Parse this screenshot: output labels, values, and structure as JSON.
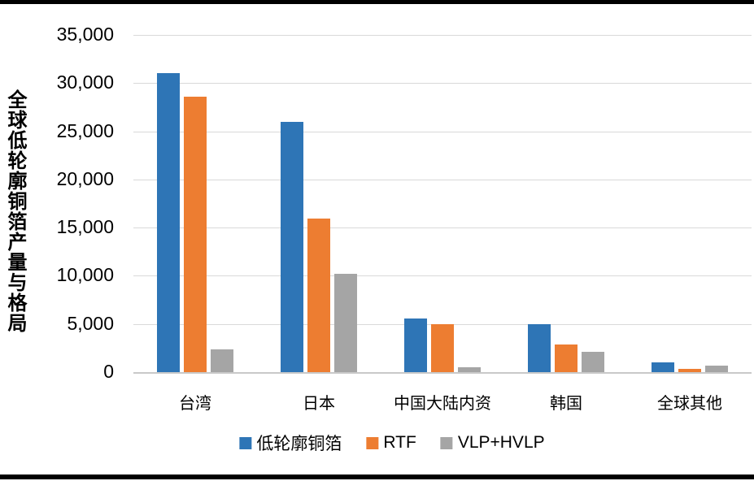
{
  "chart_data": {
    "type": "bar",
    "title": "",
    "ylabel": "全球低轮廓铜箔产量与格局",
    "categories": [
      "台湾",
      "日本",
      "中国大陆内资",
      "韩国",
      "全球其他"
    ],
    "series": [
      {
        "name": "低轮廓铜箔",
        "color": "#2E75B6",
        "values": [
          31000,
          26000,
          5600,
          5000,
          1000
        ]
      },
      {
        "name": "RTF",
        "color": "#ED7D31",
        "values": [
          28600,
          15900,
          5000,
          2900,
          300
        ]
      },
      {
        "name": "VLP+HVLP",
        "color": "#A5A5A5",
        "values": [
          2400,
          10200,
          500,
          2100,
          700
        ]
      }
    ],
    "ylim": [
      0,
      35000
    ],
    "ytick_step": 5000,
    "ytick_labels": [
      "0",
      "5,000",
      "10,000",
      "15,000",
      "20,000",
      "25,000",
      "30,000",
      "35,000"
    ],
    "grid": true,
    "legend_position": "bottom",
    "gridline_color": "#D9D9D9",
    "axisline_color": "#C9C9C9",
    "border_color": "#000000",
    "background": "#FFFFFF"
  }
}
